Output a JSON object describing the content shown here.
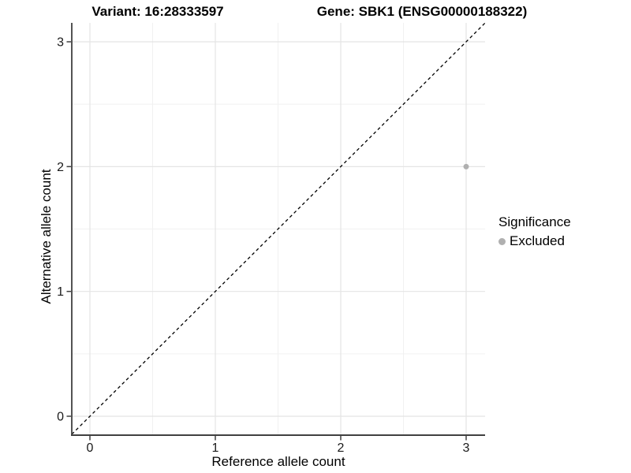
{
  "titles": {
    "variant": "Variant: 16:28333597",
    "gene": "Gene: SBK1 (ENSG00000188322)"
  },
  "legend": {
    "title": "Significance",
    "items": [
      {
        "label": "Excluded",
        "color": "#b0b0b0"
      }
    ]
  },
  "colors": {
    "background": "#ffffff",
    "axis_line": "#404040",
    "tick_label": "#1a1a1a",
    "grid_major": "#e4e4e4",
    "grid_minor": "#f1f1f1",
    "identity_line": "#000000",
    "point": "#b0b0b0"
  },
  "chart_data": {
    "type": "scatter",
    "title": "",
    "xlabel": "Reference allele count",
    "ylabel": "Alternative allele count",
    "xlim": [
      -0.15,
      3.15
    ],
    "ylim": [
      -0.15,
      3.15
    ],
    "x_ticks": [
      0,
      1,
      2,
      3
    ],
    "y_ticks": [
      0,
      1,
      2,
      3
    ],
    "x_minor_ticks": [
      0.5,
      1.5,
      2.5
    ],
    "y_minor_ticks": [
      0.5,
      1.5,
      2.5
    ],
    "grid": true,
    "legend_position": "right",
    "series": [
      {
        "name": "Excluded",
        "color": "#b0b0b0",
        "points": [
          {
            "x": 3,
            "y": 2
          }
        ]
      }
    ],
    "reference_line": {
      "kind": "identity",
      "equation": "y = x",
      "style": "dashed",
      "color": "#000000"
    }
  }
}
